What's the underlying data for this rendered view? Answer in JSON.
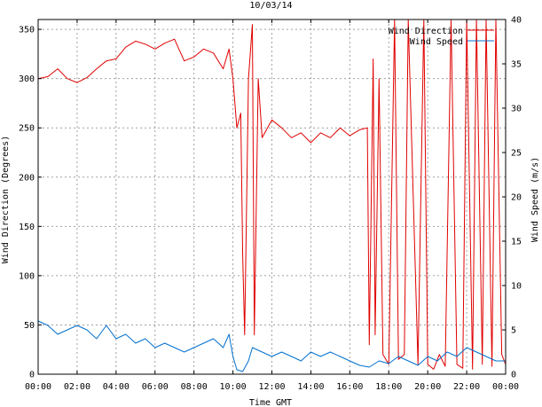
{
  "chart_data": {
    "type": "line",
    "title": "10/03/14",
    "xlabel": "Time GMT",
    "ylabel_left": "Wind Direction (Degrees)",
    "ylabel_right": "Wind Speed (m/s)",
    "xlim_hours": [
      0,
      24
    ],
    "x_tick_labels": [
      "00:00",
      "02:00",
      "04:00",
      "06:00",
      "08:00",
      "10:00",
      "12:00",
      "14:00",
      "16:00",
      "18:00",
      "20:00",
      "22:00",
      "00:00"
    ],
    "y_left_lim": [
      0,
      360
    ],
    "y_left_ticks": [
      0,
      50,
      100,
      150,
      200,
      250,
      300,
      350
    ],
    "y_right_lim": [
      0,
      40
    ],
    "y_right_ticks": [
      0,
      5,
      10,
      15,
      20,
      25,
      30,
      35,
      40
    ],
    "grid": true,
    "legend_position": "top-right",
    "series": [
      {
        "name": "Wind Direction",
        "axis": "left",
        "color": "#e00000",
        "x_hours": [
          0.0,
          0.5,
          1.0,
          1.5,
          2.0,
          2.5,
          3.0,
          3.5,
          4.0,
          4.5,
          5.0,
          5.5,
          6.0,
          6.5,
          7.0,
          7.5,
          8.0,
          8.5,
          9.0,
          9.5,
          9.8,
          10.0,
          10.2,
          10.4,
          10.5,
          10.6,
          10.8,
          11.0,
          11.1,
          11.3,
          11.5,
          12.0,
          12.5,
          13.0,
          13.5,
          14.0,
          14.5,
          15.0,
          15.5,
          16.0,
          16.5,
          16.9,
          17.0,
          17.2,
          17.3,
          17.5,
          17.7,
          18.0,
          18.3,
          18.5,
          18.8,
          19.0,
          19.5,
          19.8,
          20.0,
          20.3,
          20.6,
          20.9,
          21.2,
          21.5,
          21.8,
          22.0,
          22.3,
          22.5,
          22.8,
          23.0,
          23.3,
          23.5,
          23.8,
          24.0
        ],
        "values": [
          300,
          302,
          310,
          300,
          296,
          301,
          310,
          318,
          320,
          332,
          338,
          335,
          330,
          336,
          340,
          318,
          322,
          330,
          326,
          310,
          330,
          300,
          250,
          265,
          120,
          40,
          300,
          355,
          40,
          300,
          240,
          258,
          250,
          240,
          245,
          235,
          245,
          240,
          250,
          242,
          248,
          250,
          30,
          320,
          40,
          300,
          20,
          10,
          360,
          15,
          20,
          360,
          10,
          360,
          10,
          5,
          20,
          8,
          360,
          10,
          6,
          360,
          5,
          360,
          10,
          360,
          8,
          360,
          20,
          10
        ]
      },
      {
        "name": "Wind Speed",
        "axis": "right",
        "color": "#0070d0",
        "x_hours": [
          0.0,
          0.5,
          1.0,
          1.5,
          2.0,
          2.5,
          3.0,
          3.5,
          4.0,
          4.5,
          5.0,
          5.5,
          6.0,
          6.5,
          7.0,
          7.5,
          8.0,
          8.5,
          9.0,
          9.5,
          9.8,
          10.0,
          10.2,
          10.5,
          10.8,
          11.0,
          11.5,
          12.0,
          12.5,
          13.0,
          13.5,
          14.0,
          14.5,
          15.0,
          15.5,
          16.0,
          16.5,
          17.0,
          17.5,
          18.0,
          18.5,
          19.0,
          19.5,
          20.0,
          20.5,
          21.0,
          21.5,
          22.0,
          22.5,
          23.0,
          23.5,
          24.0
        ],
        "values": [
          6.0,
          5.5,
          4.5,
          5.0,
          5.5,
          5.0,
          4.0,
          5.5,
          4.0,
          4.5,
          3.5,
          4.0,
          3.0,
          3.5,
          3.0,
          2.5,
          3.0,
          3.5,
          4.0,
          3.0,
          4.5,
          2.0,
          0.5,
          0.3,
          1.5,
          3.0,
          2.5,
          2.0,
          2.5,
          2.0,
          1.5,
          2.5,
          2.0,
          2.5,
          2.0,
          1.5,
          1.0,
          0.8,
          1.5,
          1.2,
          2.0,
          1.5,
          1.0,
          2.0,
          1.5,
          2.5,
          2.0,
          3.0,
          2.5,
          2.0,
          1.5,
          1.5
        ]
      }
    ]
  }
}
